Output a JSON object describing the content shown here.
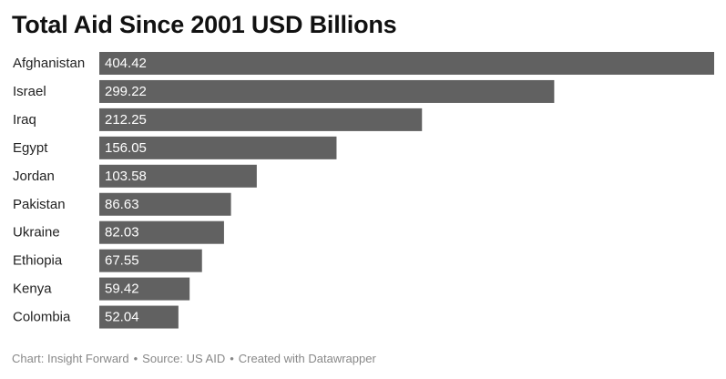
{
  "chart_data": {
    "type": "bar",
    "orientation": "horizontal",
    "title": "Total Aid Since 2001 USD Billions",
    "categories": [
      "Afghanistan",
      "Israel",
      "Iraq",
      "Egypt",
      "Jordan",
      "Pakistan",
      "Ukraine",
      "Ethiopia",
      "Kenya",
      "Colombia"
    ],
    "values": [
      404.42,
      299.22,
      212.25,
      156.05,
      103.58,
      86.63,
      82.03,
      67.55,
      59.42,
      52.04
    ],
    "value_labels": [
      "404.42",
      "299.22",
      "212.25",
      "156.05",
      "103.58",
      "86.63",
      "82.03",
      "67.55",
      "59.42",
      "52.04"
    ],
    "xlim": [
      0,
      404.42
    ],
    "grid": false,
    "legend": "none",
    "bar_color": "#616161",
    "label_color": "#ffffff"
  },
  "footer": {
    "chart_credit": "Chart: Insight Forward",
    "source": "Source: US AID",
    "created_with": "Created with Datawrapper",
    "separator": "•"
  }
}
